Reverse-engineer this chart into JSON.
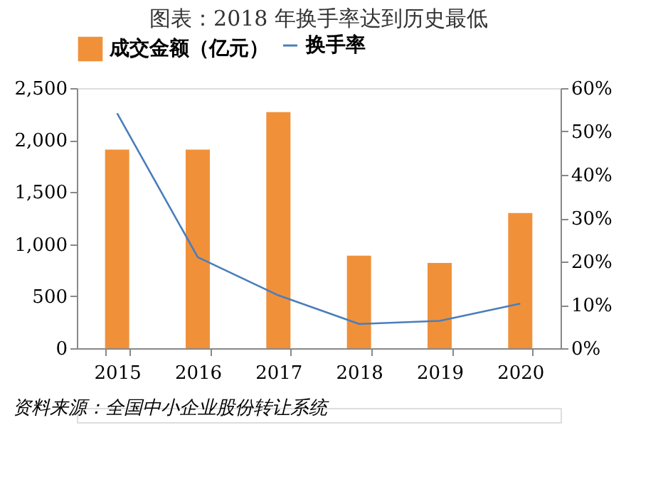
{
  "chart_data": {
    "type": "bar",
    "title": "图表：2018 年换手率达到历史最低",
    "categories": [
      "2015",
      "2016",
      "2017",
      "2018",
      "2019",
      "2020"
    ],
    "series": [
      {
        "name": "成交金额（亿元）",
        "color": "#f0913a",
        "values": [
          1910,
          1910,
          2270,
          890,
          820,
          1300
        ]
      },
      {
        "name": "换手率",
        "type": "line",
        "axis": "y2",
        "color": "#4a7ebb",
        "values": [
          54.2,
          21.0,
          12.2,
          5.6,
          6.3,
          10.3
        ]
      }
    ],
    "ylim": [
      0,
      2500
    ],
    "yticks": [
      {
        "value": 0,
        "label": "0"
      },
      {
        "value": 500,
        "label": "500"
      },
      {
        "value": 1000,
        "label": "1,000"
      },
      {
        "value": 1500,
        "label": "1,500"
      },
      {
        "value": 2000,
        "label": "2,000"
      },
      {
        "value": 2500,
        "label": "2,500"
      }
    ],
    "y2lim": [
      0,
      60
    ],
    "y2ticks": [
      {
        "value": 0,
        "label": "0%"
      },
      {
        "value": 10,
        "label": "10%"
      },
      {
        "value": 20,
        "label": "20%"
      },
      {
        "value": 30,
        "label": "30%"
      },
      {
        "value": 40,
        "label": "40%"
      },
      {
        "value": 50,
        "label": "50%"
      },
      {
        "value": 60,
        "label": "60%"
      }
    ],
    "grid": false,
    "legend": "top",
    "marker": "none",
    "line_style": "solid",
    "annotations": [
      "资料来源：全国中小企业股份转让系统"
    ]
  }
}
